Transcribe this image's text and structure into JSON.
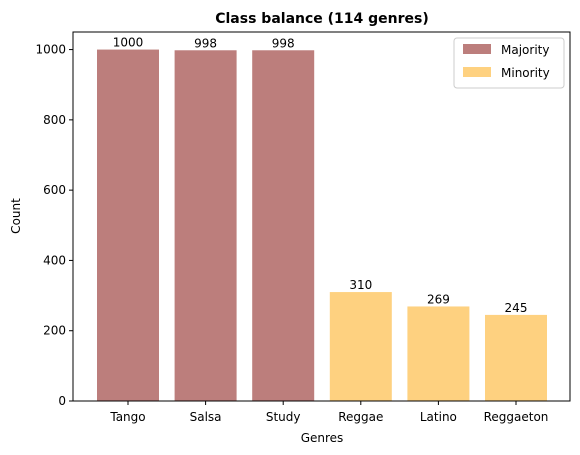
{
  "chart_data": {
    "type": "bar",
    "title": "Class balance (114 genres)",
    "xlabel": "Genres",
    "ylabel": "Count",
    "ylim": [
      0,
      1050
    ],
    "yticks": [
      0,
      200,
      400,
      600,
      800,
      1000
    ],
    "categories": [
      "Tango",
      "Salsa",
      "Study",
      "Reggae",
      "Latino",
      "Reggaeton"
    ],
    "values": [
      1000,
      998,
      998,
      310,
      269,
      245
    ],
    "groups": [
      "Majority",
      "Majority",
      "Majority",
      "Minority",
      "Minority",
      "Minority"
    ],
    "legend": {
      "placement": "top-right",
      "entries": [
        {
          "name": "Majority",
          "color": "#bc7e7c"
        },
        {
          "name": "Minority",
          "color": "#fed180"
        }
      ]
    },
    "grid": false
  }
}
